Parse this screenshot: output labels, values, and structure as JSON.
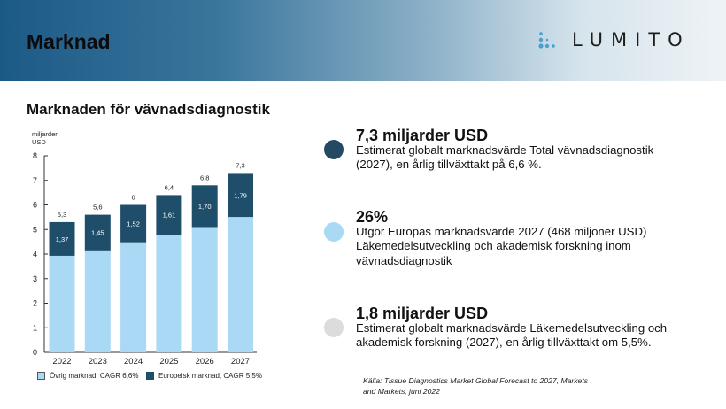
{
  "page": {
    "title": "Marknad",
    "logo_text": "LUMITO"
  },
  "chart_section": {
    "subtitle": "Marknaden för vävnadsdiagnostik",
    "legend": {
      "other": "Övrig marknad, CAGR 6,6%",
      "europe": "Europeisk marknad, CAGR 5,5%"
    }
  },
  "chart_data": {
    "type": "bar",
    "stacked": true,
    "ylabel": "miljarder\nUSD",
    "ylim": [
      0,
      8
    ],
    "yticks": [
      0,
      1,
      2,
      3,
      4,
      5,
      6,
      7,
      8
    ],
    "categories": [
      "2022",
      "2023",
      "2024",
      "2025",
      "2026",
      "2027"
    ],
    "series": [
      {
        "name": "Övrig marknad, CAGR 6,6%",
        "color": "#a9d9f5",
        "values": [
          3.93,
          4.15,
          4.48,
          4.79,
          5.1,
          5.51
        ]
      },
      {
        "name": "Europeisk marknad, CAGR 5,5%",
        "color": "#1f4e6b",
        "values": [
          1.37,
          1.45,
          1.52,
          1.61,
          1.7,
          1.79
        ],
        "labels": [
          "1,37",
          "1,45",
          "1,52",
          "1,61",
          "1,70",
          "1,79"
        ]
      }
    ],
    "totals": [
      5.3,
      5.6,
      6,
      6.4,
      6.8,
      7.3
    ],
    "total_labels": [
      "5,3",
      "5,6",
      "6",
      "6,4",
      "6,8",
      "7,3"
    ]
  },
  "stats": [
    {
      "headline": "7,3 miljarder USD",
      "text": " Estimerat globalt marknadsvärde Total vävnadsdiagnostik\n(2027), en årlig tillväxttakt på 6,6 %.",
      "color": "#234a62"
    },
    {
      "headline": "26%",
      "text": "Utgör Europas marknadsvärde 2027 (468 miljoner USD)\nLäkemedelsutveckling och akademisk forskning inom\nvävnadsdiagnostik",
      "color": "#a9d9f5"
    },
    {
      "headline": "1,8 miljarder USD",
      "text": "Estimerat globalt marknadsvärde Läkemedelsutveckling och\nakademisk forskning (2027), en årlig tillväxttakt om 5,5%.",
      "color": "#dcdcdc"
    }
  ],
  "source": "Källa: Tissue Diagnostics Market Global Forecast to 2027, Markets\nand Markets, juni 2022"
}
